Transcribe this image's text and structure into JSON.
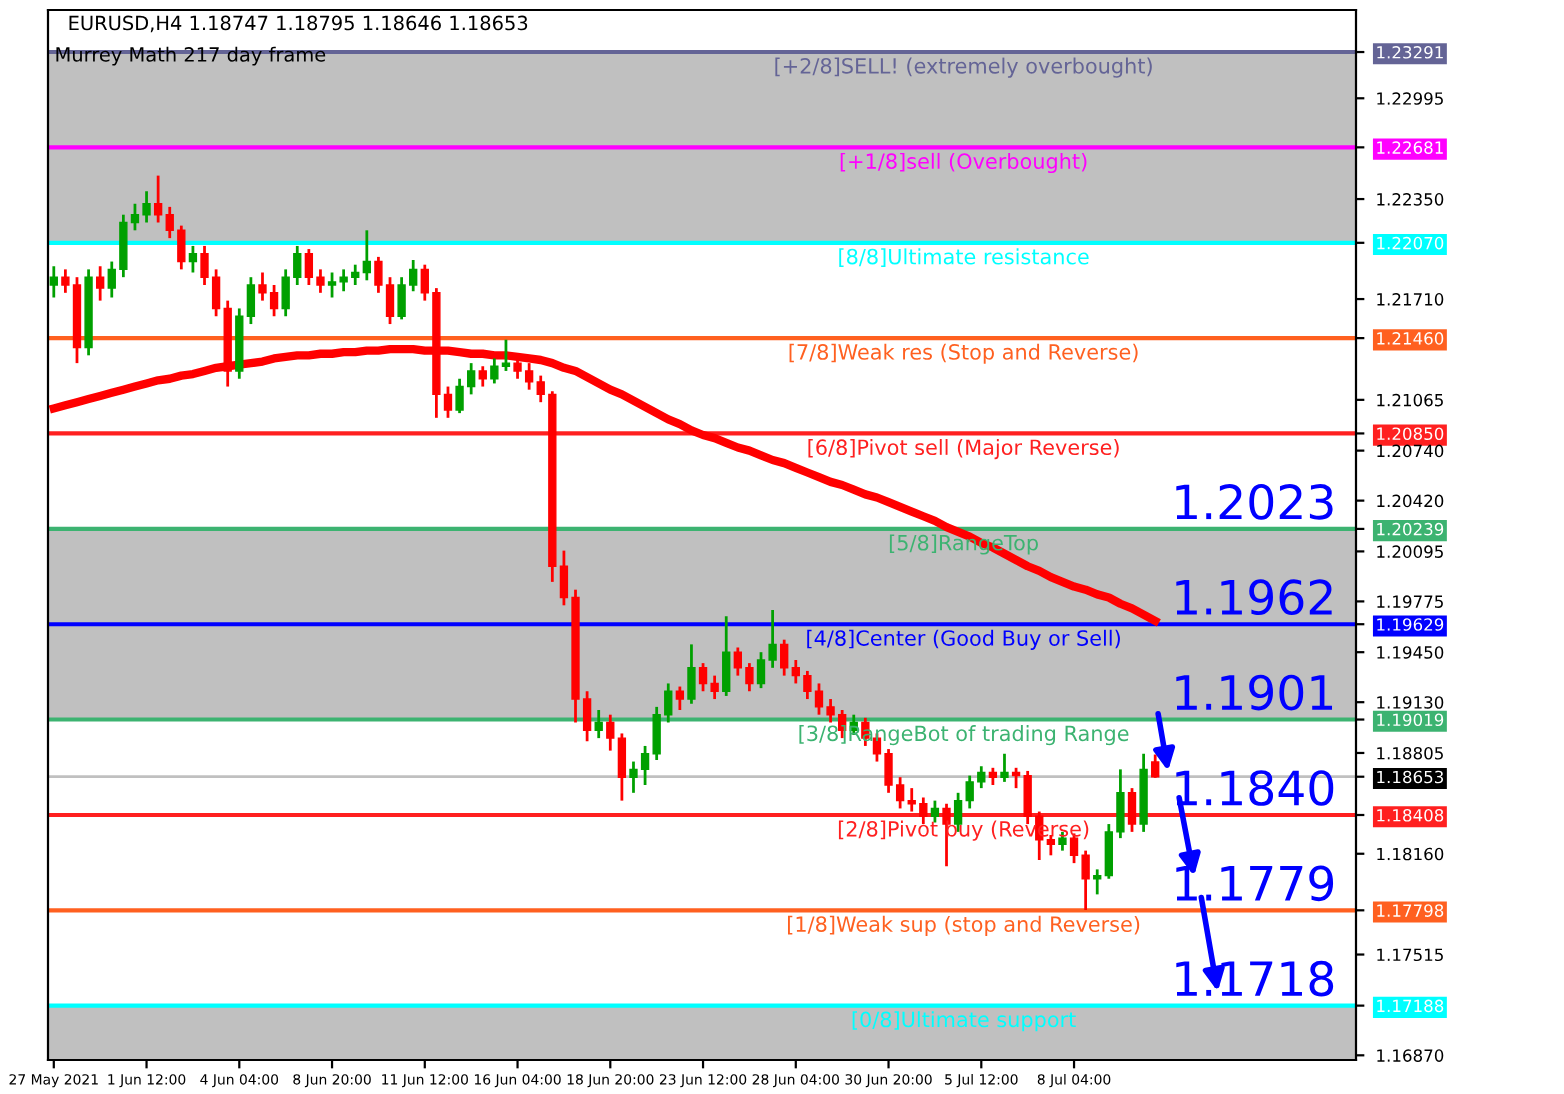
{
  "chart_data": {
    "type": "candlestick",
    "title": "EURUSD,H4 1.18747 1.18795 1.18646 1.18653",
    "subtitle": "Murrey Math 217 day frame",
    "categories": [
      "27 May 2021",
      null,
      null,
      null,
      null,
      null,
      null,
      null,
      "1 Jun 12:00",
      null,
      null,
      null,
      null,
      null,
      null,
      null,
      "4 Jun 04:00",
      null,
      null,
      null,
      null,
      null,
      null,
      null,
      "8 Jun 20:00",
      null,
      null,
      null,
      null,
      null,
      null,
      null,
      "11 Jun 12:00",
      null,
      null,
      null,
      null,
      null,
      null,
      null,
      "16 Jun 04:00",
      null,
      null,
      null,
      null,
      null,
      null,
      null,
      "18 Jun 20:00",
      null,
      null,
      null,
      null,
      null,
      null,
      null,
      "23 Jun 12:00",
      null,
      null,
      null,
      null,
      null,
      null,
      null,
      "28 Jun 04:00",
      null,
      null,
      null,
      null,
      null,
      null,
      null,
      "30 Jun 20:00",
      null,
      null,
      null,
      null,
      null,
      null,
      null,
      "5 Jul 12:00",
      null,
      null,
      null,
      null,
      null,
      null,
      null,
      "8 Jul 04:00",
      null,
      null,
      null,
      null,
      null,
      null,
      null
    ],
    "ohlc": [
      [
        1.218,
        1.2192,
        1.2172,
        1.2185
      ],
      [
        1.2185,
        1.219,
        1.2175,
        1.218
      ],
      [
        1.218,
        1.2185,
        1.213,
        1.214
      ],
      [
        1.214,
        1.219,
        1.2135,
        1.2185
      ],
      [
        1.2185,
        1.2192,
        1.217,
        1.2178
      ],
      [
        1.2178,
        1.2195,
        1.2172,
        1.219
      ],
      [
        1.219,
        1.2225,
        1.2185,
        1.222
      ],
      [
        1.222,
        1.2232,
        1.2215,
        1.2225
      ],
      [
        1.2225,
        1.224,
        1.222,
        1.2232
      ],
      [
        1.2232,
        1.225,
        1.222,
        1.2225
      ],
      [
        1.2225,
        1.223,
        1.221,
        1.2215
      ],
      [
        1.2215,
        1.2218,
        1.219,
        1.2195
      ],
      [
        1.2195,
        1.2205,
        1.2188,
        1.22
      ],
      [
        1.22,
        1.2205,
        1.218,
        1.2185
      ],
      [
        1.2185,
        1.219,
        1.216,
        1.2165
      ],
      [
        1.2165,
        1.217,
        1.2115,
        1.2125
      ],
      [
        1.2125,
        1.2165,
        1.212,
        1.216
      ],
      [
        1.216,
        1.2185,
        1.2155,
        1.218
      ],
      [
        1.218,
        1.2188,
        1.217,
        1.2175
      ],
      [
        1.2175,
        1.218,
        1.216,
        1.2165
      ],
      [
        1.2165,
        1.219,
        1.216,
        1.2185
      ],
      [
        1.2185,
        1.2205,
        1.218,
        1.22
      ],
      [
        1.22,
        1.2203,
        1.218,
        1.2185
      ],
      [
        1.2185,
        1.219,
        1.2175,
        1.218
      ],
      [
        1.218,
        1.2188,
        1.2172,
        1.2182
      ],
      [
        1.2182,
        1.219,
        1.2176,
        1.2185
      ],
      [
        1.2185,
        1.2193,
        1.218,
        1.2188
      ],
      [
        1.2188,
        1.2215,
        1.2183,
        1.2195
      ],
      [
        1.2195,
        1.2198,
        1.2175,
        1.218
      ],
      [
        1.218,
        1.2185,
        1.2155,
        1.216
      ],
      [
        1.216,
        1.2185,
        1.2158,
        1.218
      ],
      [
        1.218,
        1.2196,
        1.2176,
        1.219
      ],
      [
        1.219,
        1.2193,
        1.217,
        1.2175
      ],
      [
        1.2175,
        1.2178,
        1.2095,
        1.211
      ],
      [
        1.211,
        1.2115,
        1.2095,
        1.21
      ],
      [
        1.21,
        1.212,
        1.2098,
        1.2115
      ],
      [
        1.2115,
        1.213,
        1.211,
        1.2125
      ],
      [
        1.2125,
        1.2128,
        1.2115,
        1.212
      ],
      [
        1.212,
        1.2133,
        1.2117,
        1.2128
      ],
      [
        1.2128,
        1.2145,
        1.2125,
        1.213
      ],
      [
        1.213,
        1.2135,
        1.212,
        1.2125
      ],
      [
        1.2125,
        1.213,
        1.2113,
        1.2118
      ],
      [
        1.2118,
        1.2122,
        1.2105,
        1.211
      ],
      [
        1.211,
        1.2112,
        1.199,
        1.2
      ],
      [
        1.2,
        1.201,
        1.1975,
        1.198
      ],
      [
        1.198,
        1.1985,
        1.19,
        1.1915
      ],
      [
        1.1915,
        1.192,
        1.1888,
        1.1895
      ],
      [
        1.1895,
        1.1908,
        1.189,
        1.19
      ],
      [
        1.19,
        1.1905,
        1.1882,
        1.189
      ],
      [
        1.189,
        1.1893,
        1.185,
        1.1865
      ],
      [
        1.1865,
        1.1875,
        1.1855,
        1.187
      ],
      [
        1.187,
        1.1885,
        1.186,
        1.188
      ],
      [
        1.188,
        1.191,
        1.1876,
        1.1905
      ],
      [
        1.1905,
        1.1925,
        1.19,
        1.192
      ],
      [
        1.192,
        1.1923,
        1.1908,
        1.1915
      ],
      [
        1.1915,
        1.195,
        1.1912,
        1.1935
      ],
      [
        1.1935,
        1.1938,
        1.192,
        1.1925
      ],
      [
        1.1925,
        1.193,
        1.1915,
        1.192
      ],
      [
        1.192,
        1.1968,
        1.1917,
        1.1945
      ],
      [
        1.1945,
        1.1948,
        1.193,
        1.1935
      ],
      [
        1.1935,
        1.1938,
        1.192,
        1.1925
      ],
      [
        1.1925,
        1.1945,
        1.1922,
        1.194
      ],
      [
        1.194,
        1.1972,
        1.1935,
        1.195
      ],
      [
        1.195,
        1.1953,
        1.193,
        1.1935
      ],
      [
        1.1935,
        1.194,
        1.1925,
        1.193
      ],
      [
        1.193,
        1.1933,
        1.1915,
        1.192
      ],
      [
        1.192,
        1.1925,
        1.1905,
        1.191
      ],
      [
        1.191,
        1.1915,
        1.19,
        1.1905
      ],
      [
        1.1905,
        1.1908,
        1.189,
        1.1895
      ],
      [
        1.1895,
        1.1905,
        1.1892,
        1.19
      ],
      [
        1.19,
        1.1903,
        1.1885,
        1.189
      ],
      [
        1.189,
        1.1893,
        1.1875,
        1.188
      ],
      [
        1.188,
        1.1883,
        1.1855,
        1.186
      ],
      [
        1.186,
        1.1865,
        1.1845,
        1.185
      ],
      [
        1.185,
        1.1858,
        1.1843,
        1.1848
      ],
      [
        1.1848,
        1.1852,
        1.1835,
        1.184
      ],
      [
        1.184,
        1.185,
        1.1836,
        1.1845
      ],
      [
        1.1845,
        1.1848,
        1.1808,
        1.1835
      ],
      [
        1.1835,
        1.1855,
        1.183,
        1.185
      ],
      [
        1.185,
        1.1866,
        1.1845,
        1.1862
      ],
      [
        1.1862,
        1.1872,
        1.1858,
        1.1868
      ],
      [
        1.1868,
        1.1871,
        1.186,
        1.1865
      ],
      [
        1.1865,
        1.188,
        1.1862,
        1.1868
      ],
      [
        1.1868,
        1.1871,
        1.1858,
        1.1866
      ],
      [
        1.1866,
        1.1869,
        1.1835,
        1.184
      ],
      [
        1.184,
        1.1843,
        1.1812,
        1.1825
      ],
      [
        1.1825,
        1.1828,
        1.1815,
        1.1822
      ],
      [
        1.1822,
        1.183,
        1.1818,
        1.1826
      ],
      [
        1.1826,
        1.1829,
        1.181,
        1.1815
      ],
      [
        1.1815,
        1.1818,
        1.178,
        1.18
      ],
      [
        1.18,
        1.1806,
        1.179,
        1.1802
      ],
      [
        1.1802,
        1.1835,
        1.18,
        1.183
      ],
      [
        1.183,
        1.187,
        1.1826,
        1.1855
      ],
      [
        1.1855,
        1.1858,
        1.183,
        1.1835
      ],
      [
        1.1835,
        1.188,
        1.183,
        1.187
      ],
      [
        1.18747,
        1.18795,
        1.18646,
        1.18653
      ]
    ],
    "colors": [
      "#00a000",
      "#ff0000",
      "#ff0000",
      "#00a000",
      "#ff0000",
      "#00a000",
      "#00a000",
      "#00a000",
      "#00a000",
      "#ff0000",
      "#ff0000",
      "#ff0000",
      "#00a000",
      "#ff0000",
      "#ff0000",
      "#ff0000",
      "#00a000",
      "#00a000",
      "#ff0000",
      "#ff0000",
      "#00a000",
      "#00a000",
      "#ff0000",
      "#ff0000",
      "#00a000",
      "#00a000",
      "#00a000",
      "#00a000",
      "#ff0000",
      "#ff0000",
      "#00a000",
      "#00a000",
      "#ff0000",
      "#ff0000",
      "#ff0000",
      "#00a000",
      "#00a000",
      "#ff0000",
      "#00a000",
      "#00a000",
      "#ff0000",
      "#ff0000",
      "#ff0000",
      "#ff0000",
      "#ff0000",
      "#ff0000",
      "#ff0000",
      "#00a000",
      "#ff0000",
      "#ff0000",
      "#00a000",
      "#00a000",
      "#00a000",
      "#00a000",
      "#ff0000",
      "#00a000",
      "#ff0000",
      "#ff0000",
      "#00a000",
      "#ff0000",
      "#ff0000",
      "#00a000",
      "#00a000",
      "#ff0000",
      "#ff0000",
      "#ff0000",
      "#ff0000",
      "#ff0000",
      "#ff0000",
      "#00a000",
      "#ff0000",
      "#ff0000",
      "#ff0000",
      "#ff0000",
      "#ff0000",
      "#ff0000",
      "#00a000",
      "#ff0000",
      "#00a000",
      "#00a000",
      "#00a000",
      "#ff0000",
      "#00a000",
      "#ff0000",
      "#ff0000",
      "#ff0000",
      "#ff0000",
      "#00a000",
      "#ff0000",
      "#ff0000",
      "#00a000",
      "#00a000",
      "#00a000",
      "#ff0000",
      "#00a000",
      "#ff0000"
    ],
    "series": [
      {
        "type": "line",
        "color": "#ff0000",
        "values": [
          1.2101,
          1.2103,
          1.2105,
          1.2107,
          1.2109,
          1.2111,
          1.2113,
          1.2115,
          1.2117,
          1.2119,
          1.212,
          1.2122,
          1.2123,
          1.2125,
          1.2127,
          1.2128,
          1.2129,
          1.213,
          1.2131,
          1.2133,
          1.2134,
          1.2135,
          1.2135,
          1.2136,
          1.2136,
          1.2137,
          1.2137,
          1.2138,
          1.2138,
          1.2139,
          1.2139,
          1.2139,
          1.2138,
          1.2138,
          1.2138,
          1.2137,
          1.2136,
          1.2136,
          1.2135,
          1.2135,
          1.2134,
          1.2133,
          1.2132,
          1.213,
          1.2127,
          1.2125,
          1.2121,
          1.2117,
          1.2113,
          1.211,
          1.2106,
          1.2102,
          1.2098,
          1.2094,
          1.2091,
          1.2087,
          1.2084,
          1.2082,
          1.2079,
          1.2076,
          1.2074,
          1.2071,
          1.2068,
          1.2066,
          1.2063,
          1.206,
          1.2057,
          1.2054,
          1.2052,
          1.2049,
          1.2046,
          1.2044,
          1.2041,
          1.2038,
          1.2035,
          1.2032,
          1.2029,
          1.2025,
          1.2022,
          1.2019,
          1.2015,
          1.2012,
          1.2008,
          1.2004,
          1.2,
          1.1997,
          1.1993,
          1.199,
          1.1987,
          1.1985,
          1.1982,
          1.198,
          1.1976,
          1.1973,
          1.1969,
          1.1965
        ]
      }
    ],
    "ylim": [
      1.1684,
      1.2356
    ],
    "yticks": [
      {
        "value": 1.23291,
        "label": "1.23291"
      },
      {
        "value": 1.22681,
        "label": "1.22681"
      },
      {
        "value": 1.2207,
        "label": "1.22070"
      },
      {
        "value": 1.2146,
        "label": "1.21460"
      },
      {
        "value": 1.2085,
        "label": "1.20850"
      },
      {
        "value": 1.20239,
        "label": "1.20239"
      },
      {
        "value": 1.19629,
        "label": "1.19629"
      },
      {
        "value": 1.19019,
        "label": "1.19019"
      },
      {
        "value": 1.18653,
        "label": "1.18653"
      },
      {
        "value": 1.18408,
        "label": "1.18408"
      },
      {
        "value": 1.17798,
        "label": "1.17798"
      },
      {
        "value": 1.17188,
        "label": "1.17188"
      },
      {
        "value": 1.22995,
        "label": "1.22995"
      },
      {
        "value": 1.2235,
        "label": "1.22350"
      },
      {
        "value": 1.2171,
        "label": "1.21710"
      },
      {
        "value": 1.21065,
        "label": "1.21065"
      },
      {
        "value": 1.2074,
        "label": "1.20740"
      },
      {
        "value": 1.2042,
        "label": "1.20420"
      },
      {
        "value": 1.20095,
        "label": "1.20095"
      },
      {
        "value": 1.19775,
        "label": "1.19775"
      },
      {
        "value": 1.1945,
        "label": "1.19450"
      },
      {
        "value": 1.1913,
        "label": "1.19130"
      },
      {
        "value": 1.18805,
        "label": "1.18805"
      },
      {
        "value": 1.1816,
        "label": "1.18160"
      },
      {
        "value": 1.17515,
        "label": "1.17515"
      },
      {
        "value": 1.1687,
        "label": "1.16870"
      }
    ],
    "bands": [
      {
        "axis": "y",
        "from": 1.2207,
        "to": 1.23291,
        "color": "#c0c0c0"
      },
      {
        "axis": "y",
        "from": 1.19019,
        "to": 1.20239,
        "color": "#c0c0c0"
      },
      {
        "axis": "y",
        "from": 1.1684,
        "to": 1.17188,
        "color": "#c0c0c0"
      }
    ],
    "ref_lines": [
      {
        "axis": "y",
        "value": 1.23291,
        "label": "[+2/8]SELL! (extremely overbought)",
        "color": "#646496"
      },
      {
        "axis": "y",
        "value": 1.22681,
        "label": "[+1/8]sell (Overbought)",
        "color": "#ff00ff"
      },
      {
        "axis": "y",
        "value": 1.2207,
        "label": "[8/8]Ultimate resistance",
        "color": "#00ffff"
      },
      {
        "axis": "y",
        "value": 1.2146,
        "label": "[7/8]Weak res (Stop and Reverse)",
        "color": "#ff6020"
      },
      {
        "axis": "y",
        "value": 1.2085,
        "label": "[6/8]Pivot sell (Major Reverse)",
        "color": "#ff2020"
      },
      {
        "axis": "y",
        "value": 1.20239,
        "label": "[5/8]RangeTop",
        "color": "#3cb371"
      },
      {
        "axis": "y",
        "value": 1.19629,
        "label": "[4/8]Center (Good Buy or Sell)",
        "color": "#0000ff"
      },
      {
        "axis": "y",
        "value": 1.19019,
        "label": "[3/8]RangeBot of trading Range",
        "color": "#3cb371"
      },
      {
        "axis": "y",
        "value": 1.18653,
        "label": null,
        "color": "#c0c0c0"
      },
      {
        "axis": "y",
        "value": 1.18408,
        "label": "[2/8]Pivot buy (Reverse)",
        "color": "#ff2020"
      },
      {
        "axis": "y",
        "value": 1.17798,
        "label": "[1/8]Weak sup (stop and Reverse)",
        "color": "#ff6020"
      },
      {
        "axis": "y",
        "value": 1.17188,
        "label": "[0/8]Ultimate support",
        "color": "#00ffff"
      }
    ],
    "annotations": [
      {
        "text": "1.2023",
        "y": 1.20239
      },
      {
        "text": "1.1962",
        "y": 1.19629
      },
      {
        "text": "1.1901",
        "y": 1.19019
      },
      {
        "text": "1.1840",
        "y": 1.18408
      },
      {
        "text": "1.1779",
        "y": 1.17798
      },
      {
        "text": "1.1718",
        "y": 1.17188
      }
    ],
    "grid": false,
    "legend": false
  }
}
